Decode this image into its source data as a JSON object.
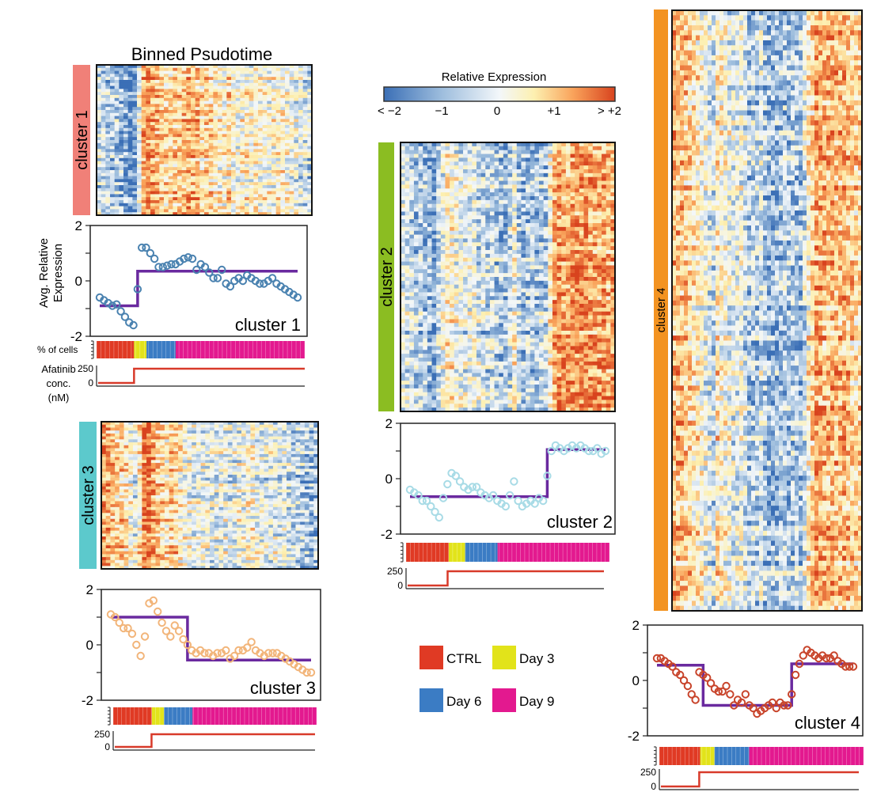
{
  "title": "Binned Psudotime",
  "colorbar": {
    "title": "Relative Expression",
    "ticks": [
      "< −2",
      "−1",
      "0",
      "+1",
      "> +2"
    ],
    "stops": [
      "#3b6fb6",
      "#9dbddd",
      "#f3f7fa",
      "#fdf0b0",
      "#f9a25a",
      "#d8431e"
    ]
  },
  "axis_labels": {
    "avg_expression": "Avg. Relative Expression",
    "pct_cells": "% of cells",
    "afatinib": "Afatinib conc. (nM)",
    "afatinib_lines": [
      "Afatinib",
      "conc.",
      "(nM)"
    ],
    "avg_lines": [
      "Avg. Relative",
      "Expression"
    ]
  },
  "legend": [
    {
      "label": "CTRL",
      "color": "#e03a24"
    },
    {
      "label": "Day 3",
      "color": "#e2e31a"
    },
    {
      "label": "Day 6",
      "color": "#3b7cc4"
    },
    {
      "label": "Day 9",
      "color": "#e3198f"
    }
  ],
  "chart_data": [
    {
      "type": "line",
      "panel": "cluster 1",
      "side_label": "cluster 1",
      "label_color": "#f08078",
      "marker_color": "#4a82b0",
      "step_color": "#6a2a9f",
      "ylim": [
        -2,
        2
      ],
      "yticks": [
        "2",
        "0",
        "-2"
      ],
      "points": [
        -0.6,
        -0.7,
        -0.8,
        -0.9,
        -0.85,
        -1.1,
        -1.3,
        -1.5,
        -1.6,
        -0.3,
        1.2,
        1.2,
        1.0,
        0.8,
        0.5,
        0.5,
        0.55,
        0.6,
        0.6,
        0.7,
        0.8,
        0.85,
        0.8,
        0.4,
        0.6,
        0.5,
        0.3,
        0.1,
        0.1,
        0.4,
        -0.1,
        -0.2,
        0.0,
        0.1,
        0.0,
        0.2,
        0.1,
        0.0,
        -0.1,
        -0.1,
        0.0,
        0.1,
        -0.1,
        -0.2,
        -0.3,
        -0.4,
        -0.5,
        -0.6
      ],
      "step": {
        "before": -0.9,
        "after": 0.35,
        "switch_bin": 9
      },
      "afatinib_ticks": [
        "250",
        "0"
      ],
      "afatinib_levels": [
        0,
        250
      ],
      "composition_segments": [
        [
          0.18,
          "#e03a24"
        ],
        [
          0.06,
          "#e2e31a"
        ],
        [
          0.14,
          "#3b7cc4"
        ],
        [
          0.62,
          "#e3198f"
        ]
      ]
    },
    {
      "type": "line",
      "panel": "cluster 2",
      "side_label": "cluster 2",
      "label_color": "#8bbd22",
      "marker_color": "#a8dbe6",
      "step_color": "#6a2a9f",
      "ylim": [
        -2,
        2
      ],
      "yticks": [
        "2",
        "0",
        "-2"
      ],
      "points": [
        -0.4,
        -0.5,
        -0.6,
        -0.8,
        -0.8,
        -1.0,
        -1.2,
        -1.4,
        -0.7,
        -0.2,
        0.2,
        0.1,
        -0.1,
        -0.3,
        -0.4,
        -0.3,
        -0.3,
        -0.5,
        -0.6,
        -0.7,
        -0.6,
        -0.8,
        -0.9,
        -1.0,
        -0.6,
        -0.1,
        -0.8,
        -1.0,
        -0.9,
        -0.8,
        -0.9,
        -0.7,
        -0.8,
        0.1,
        1.0,
        1.2,
        1.1,
        1.0,
        1.1,
        1.2,
        1.1,
        1.2,
        1.1,
        1.0,
        1.0,
        1.1,
        0.9,
        1.0
      ],
      "step": {
        "before": -0.65,
        "after": 1.05,
        "switch_bin": 33
      },
      "afatinib_ticks": [
        "250",
        "0"
      ],
      "afatinib_levels": [
        0,
        250
      ],
      "composition_segments": [
        [
          0.21,
          "#e03a24"
        ],
        [
          0.08,
          "#e2e31a"
        ],
        [
          0.16,
          "#3b7cc4"
        ],
        [
          0.55,
          "#e3198f"
        ]
      ]
    },
    {
      "type": "line",
      "panel": "cluster 3",
      "side_label": "cluster 3",
      "label_color": "#5cc9cc",
      "marker_color": "#f2b57a",
      "step_color": "#6a2a9f",
      "ylim": [
        -2,
        2
      ],
      "yticks": [
        "2",
        "0",
        "-2"
      ],
      "points": [
        1.1,
        1.0,
        0.8,
        0.6,
        0.6,
        0.4,
        0.0,
        -0.4,
        0.3,
        1.5,
        1.6,
        1.2,
        0.8,
        0.5,
        0.3,
        0.7,
        0.5,
        0.2,
        0.0,
        -0.2,
        -0.3,
        -0.2,
        -0.3,
        -0.3,
        -0.4,
        -0.3,
        -0.3,
        -0.2,
        -0.5,
        -0.4,
        -0.2,
        -0.2,
        -0.1,
        0.1,
        -0.2,
        -0.3,
        -0.4,
        -0.3,
        -0.3,
        -0.3,
        -0.4,
        -0.5,
        -0.6,
        -0.7,
        -0.8,
        -0.9,
        -1.0,
        -1.0
      ],
      "step": {
        "before": 1.0,
        "after": -0.55,
        "switch_bin": 18
      },
      "afatinib_ticks": [
        "250",
        "0"
      ],
      "afatinib_levels": [
        0,
        250
      ],
      "composition_segments": [
        [
          0.19,
          "#e03a24"
        ],
        [
          0.06,
          "#e2e31a"
        ],
        [
          0.14,
          "#3b7cc4"
        ],
        [
          0.61,
          "#e3198f"
        ]
      ]
    },
    {
      "type": "line",
      "panel": "cluster 4",
      "side_label": "cluster 4",
      "label_color": "#f39321",
      "marker_color": "#c8442b",
      "step_color": "#6a2a9f",
      "ylim": [
        -2,
        2
      ],
      "yticks": [
        "2",
        "0",
        "-2"
      ],
      "points": [
        0.8,
        0.8,
        0.7,
        0.6,
        0.5,
        0.3,
        0.2,
        0.0,
        -0.2,
        -0.5,
        -0.7,
        0.3,
        0.2,
        0.1,
        -0.1,
        -0.3,
        -0.4,
        -0.4,
        -0.2,
        -0.5,
        -0.9,
        -0.7,
        -0.8,
        -0.5,
        -0.9,
        -1.0,
        -1.2,
        -1.1,
        -1.0,
        -0.9,
        -0.8,
        -1.0,
        -0.8,
        -0.9,
        -0.9,
        -0.5,
        0.2,
        0.6,
        0.9,
        1.1,
        1.0,
        0.9,
        0.8,
        0.9,
        0.8,
        0.8,
        0.9,
        0.7,
        0.6,
        0.5,
        0.5,
        0.5
      ],
      "step": {
        "before": 0.55,
        "after": 0.6,
        "mid": -0.9,
        "switch_bins": [
          12,
          35
        ]
      },
      "afatinib_ticks": [
        "250",
        "0"
      ],
      "afatinib_levels": [
        0,
        250
      ],
      "composition_segments": [
        [
          0.2,
          "#e03a24"
        ],
        [
          0.07,
          "#e2e31a"
        ],
        [
          0.17,
          "#3b7cc4"
        ],
        [
          0.56,
          "#e3198f"
        ]
      ]
    }
  ]
}
